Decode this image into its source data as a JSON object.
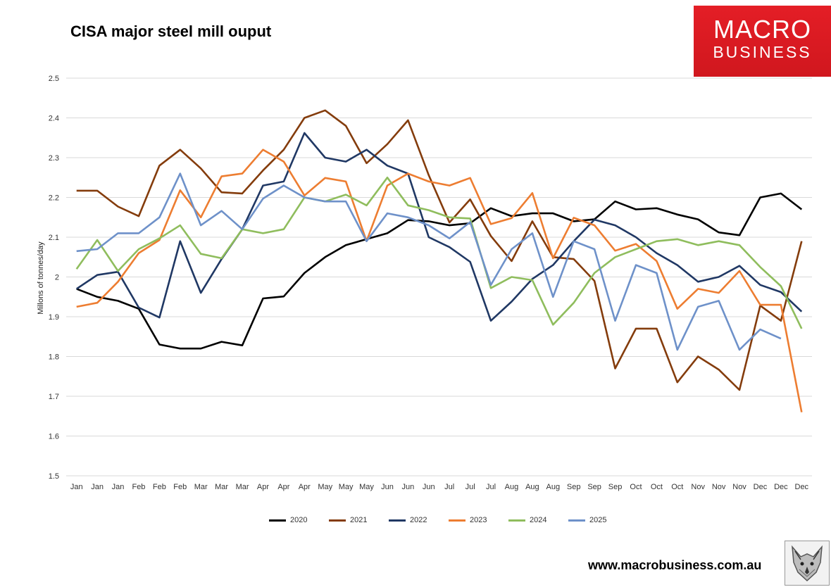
{
  "header": {
    "title": "CISA major steel mill ouput"
  },
  "logo": {
    "line1": "MACRO",
    "line2": "BUSINESS"
  },
  "footer": {
    "website": "www.macrobusiness.com.au"
  },
  "colors": {
    "background": "#ffffff",
    "gridline": "#d9d9d9",
    "brand_red": "#e41e26"
  },
  "chart_data": {
    "type": "line",
    "title": "CISA major steel mill ouput",
    "xlabel": "",
    "ylabel": "Millons of tonnes/day",
    "ylim": [
      1.5,
      2.5
    ],
    "yticks": [
      "1.5",
      "1.6",
      "1.7",
      "1.8",
      "1.9",
      "2",
      "2.1",
      "2.2",
      "2.3",
      "2.4",
      "2.5"
    ],
    "categories": [
      "Jan",
      "Jan",
      "Jan",
      "Feb",
      "Feb",
      "Feb",
      "Mar",
      "Mar",
      "Mar",
      "Apr",
      "Apr",
      "Apr",
      "May",
      "May",
      "May",
      "Jun",
      "Jun",
      "Jun",
      "Jul",
      "Jul",
      "Jul",
      "Aug",
      "Aug",
      "Aug",
      "Sep",
      "Sep",
      "Sep",
      "Oct",
      "Oct",
      "Oct",
      "Nov",
      "Nov",
      "Nov",
      "Dec",
      "Dec",
      "Dec"
    ],
    "grid": true,
    "legend_position": "bottom",
    "series": [
      {
        "name": "2020",
        "color": "#000000",
        "values": [
          1.97,
          1.95,
          1.94,
          1.92,
          1.83,
          1.82,
          1.82,
          1.837,
          1.828,
          1.946,
          1.951,
          2.01,
          2.05,
          2.08,
          2.095,
          2.11,
          2.143,
          2.14,
          2.13,
          2.135,
          2.173,
          2.153,
          2.16,
          2.16,
          2.14,
          2.145,
          2.19,
          2.17,
          2.173,
          2.157,
          2.145,
          2.112,
          2.105,
          2.2,
          2.21,
          2.17
        ]
      },
      {
        "name": "2021",
        "color": "#843c0c",
        "values": [
          2.217,
          2.217,
          2.177,
          2.153,
          2.28,
          2.32,
          2.273,
          2.213,
          2.21,
          2.268,
          2.32,
          2.4,
          2.419,
          2.38,
          2.286,
          2.334,
          2.394,
          2.256,
          2.137,
          2.195,
          2.103,
          2.04,
          2.14,
          2.05,
          2.045,
          1.99,
          1.77,
          1.87,
          1.87,
          1.735,
          1.8,
          1.767,
          1.716,
          1.928,
          1.89,
          2.09
        ]
      },
      {
        "name": "2022",
        "color": "#203864",
        "values": [
          1.97,
          2.005,
          2.013,
          1.923,
          1.898,
          2.09,
          1.96,
          2.045,
          2.12,
          2.23,
          2.24,
          2.362,
          2.3,
          2.29,
          2.32,
          2.28,
          2.26,
          2.1,
          2.075,
          2.038,
          1.89,
          1.938,
          1.995,
          2.03,
          2.09,
          2.144,
          2.13,
          2.1,
          2.06,
          2.03,
          1.988,
          2.0,
          2.028,
          1.98,
          1.962,
          1.913
        ]
      },
      {
        "name": "2023",
        "color": "#ed7d31",
        "values": [
          1.925,
          1.935,
          1.988,
          2.06,
          2.093,
          2.218,
          2.15,
          2.253,
          2.26,
          2.32,
          2.29,
          2.205,
          2.249,
          2.24,
          2.09,
          2.23,
          2.26,
          2.24,
          2.23,
          2.249,
          2.133,
          2.148,
          2.211,
          2.047,
          2.149,
          2.13,
          2.066,
          2.083,
          2.04,
          1.92,
          1.97,
          1.96,
          2.015,
          1.93,
          1.93,
          1.66
        ]
      },
      {
        "name": "2024",
        "color": "#8fbd5d",
        "values": [
          2.02,
          2.093,
          2.015,
          2.07,
          2.097,
          2.13,
          2.058,
          2.047,
          2.12,
          2.11,
          2.12,
          2.2,
          2.19,
          2.207,
          2.18,
          2.25,
          2.18,
          2.168,
          2.15,
          2.147,
          1.972,
          2.0,
          1.992,
          1.88,
          1.935,
          2.01,
          2.05,
          2.07,
          2.09,
          2.095,
          2.08,
          2.09,
          2.08,
          2.025,
          1.977,
          1.87
        ]
      },
      {
        "name": "2025",
        "color": "#6e91c9",
        "values": [
          2.065,
          2.07,
          2.11,
          2.11,
          2.15,
          2.26,
          2.13,
          2.166,
          2.12,
          2.197,
          2.23,
          2.2,
          2.19,
          2.19,
          2.09,
          2.16,
          2.15,
          2.13,
          2.097,
          2.138,
          1.98,
          2.07,
          2.11,
          1.95,
          2.09,
          2.07,
          1.89,
          2.03,
          2.01,
          1.817,
          1.925,
          1.94,
          1.817,
          1.868,
          1.845,
          null
        ]
      }
    ]
  }
}
